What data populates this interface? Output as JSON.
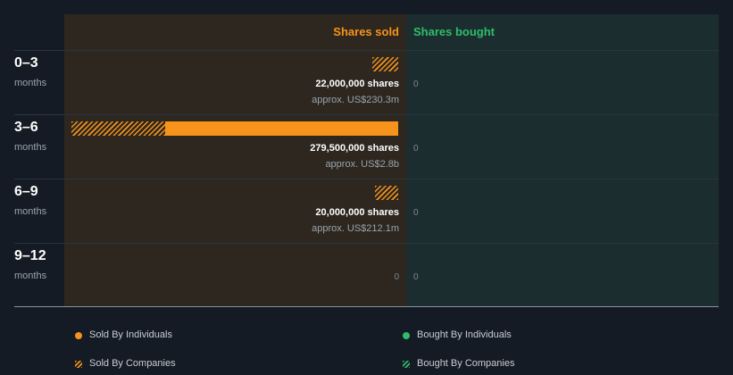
{
  "header": {
    "sold_label": "Shares sold",
    "bought_label": "Shares bought"
  },
  "chart_data": {
    "type": "bar",
    "categories": [
      "0–3 months",
      "3–6 months",
      "6–9 months",
      "9–12 months"
    ],
    "series": [
      {
        "name": "Sold By Individuals",
        "values": [
          0,
          199000000,
          0,
          0
        ]
      },
      {
        "name": "Sold By Companies",
        "values": [
          22000000,
          80500000,
          20000000,
          0
        ]
      },
      {
        "name": "Bought By Individuals",
        "values": [
          0,
          0,
          0,
          0
        ]
      },
      {
        "name": "Bought By Companies",
        "values": [
          0,
          0,
          0,
          0
        ]
      }
    ],
    "colors": {
      "sold": "#f7931a",
      "bought": "#2ebd6b"
    }
  },
  "rows": [
    {
      "period": "0–3",
      "unit": "months",
      "shares": "22,000,000 shares",
      "approx": "approx. US$230.3m",
      "sold_zero": "",
      "bought": "0"
    },
    {
      "period": "3–6",
      "unit": "months",
      "shares": "279,500,000 shares",
      "approx": "approx. US$2.8b",
      "sold_zero": "",
      "bought": "0"
    },
    {
      "period": "6–9",
      "unit": "months",
      "shares": "20,000,000 shares",
      "approx": "approx. US$212.1m",
      "sold_zero": "",
      "bought": "0"
    },
    {
      "period": "9–12",
      "unit": "months",
      "shares": "",
      "approx": "",
      "sold_zero": "0",
      "bought": "0"
    }
  ],
  "legend": {
    "sold_individuals": "Sold By Individuals",
    "sold_companies": "Sold By Companies",
    "bought_individuals": "Bought By Individuals",
    "bought_companies": "Bought By Companies"
  }
}
